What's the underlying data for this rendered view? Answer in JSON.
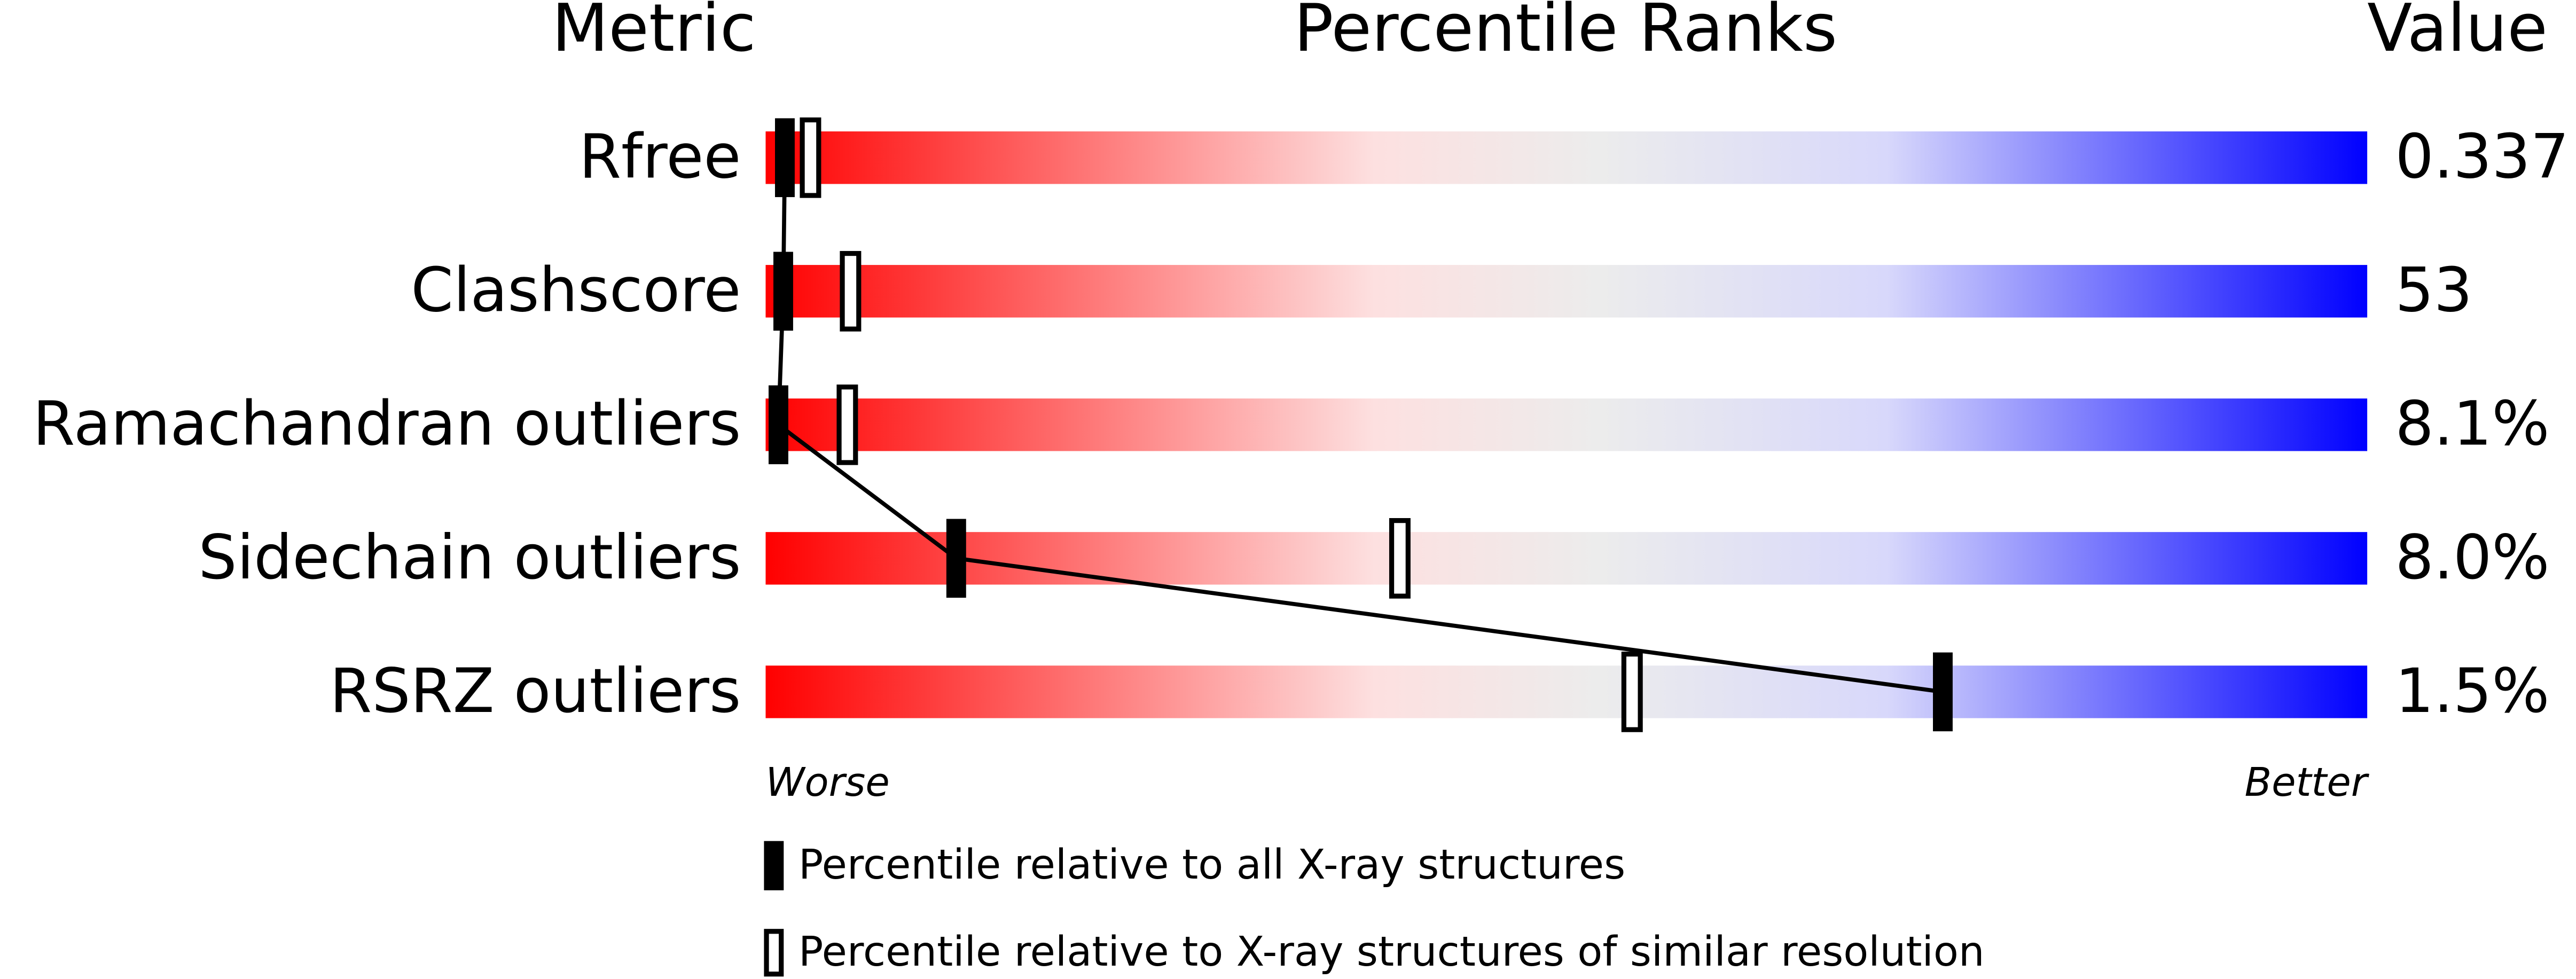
{
  "chart_data": {
    "type": "percentile",
    "headers": {
      "metric": "Metric",
      "ranks": "Percentile Ranks",
      "value": "Value"
    },
    "categories": [
      "Rfree",
      "Clashscore",
      "Ramachandran outliers",
      "Sidechain outliers",
      "RSRZ outliers"
    ],
    "metric_values": [
      "0.337",
      "53",
      "8.1%",
      "8.0%",
      "1.5%"
    ],
    "series": [
      {
        "name": "Percentile relative to all X-ray structures",
        "color": "#000000",
        "style": "filled",
        "values": [
          1.2,
          1.1,
          0.8,
          11.9,
          73.5
        ]
      },
      {
        "name": "Percentile relative to X-ray structures of similar resolution",
        "color": "#000000",
        "style": "hollow",
        "values": [
          2.8,
          5.3,
          5.1,
          39.6,
          54.1
        ]
      }
    ],
    "xlim": [
      0,
      100
    ],
    "worse_label": "Worse",
    "better_label": "Better",
    "connect_series": 0
  }
}
